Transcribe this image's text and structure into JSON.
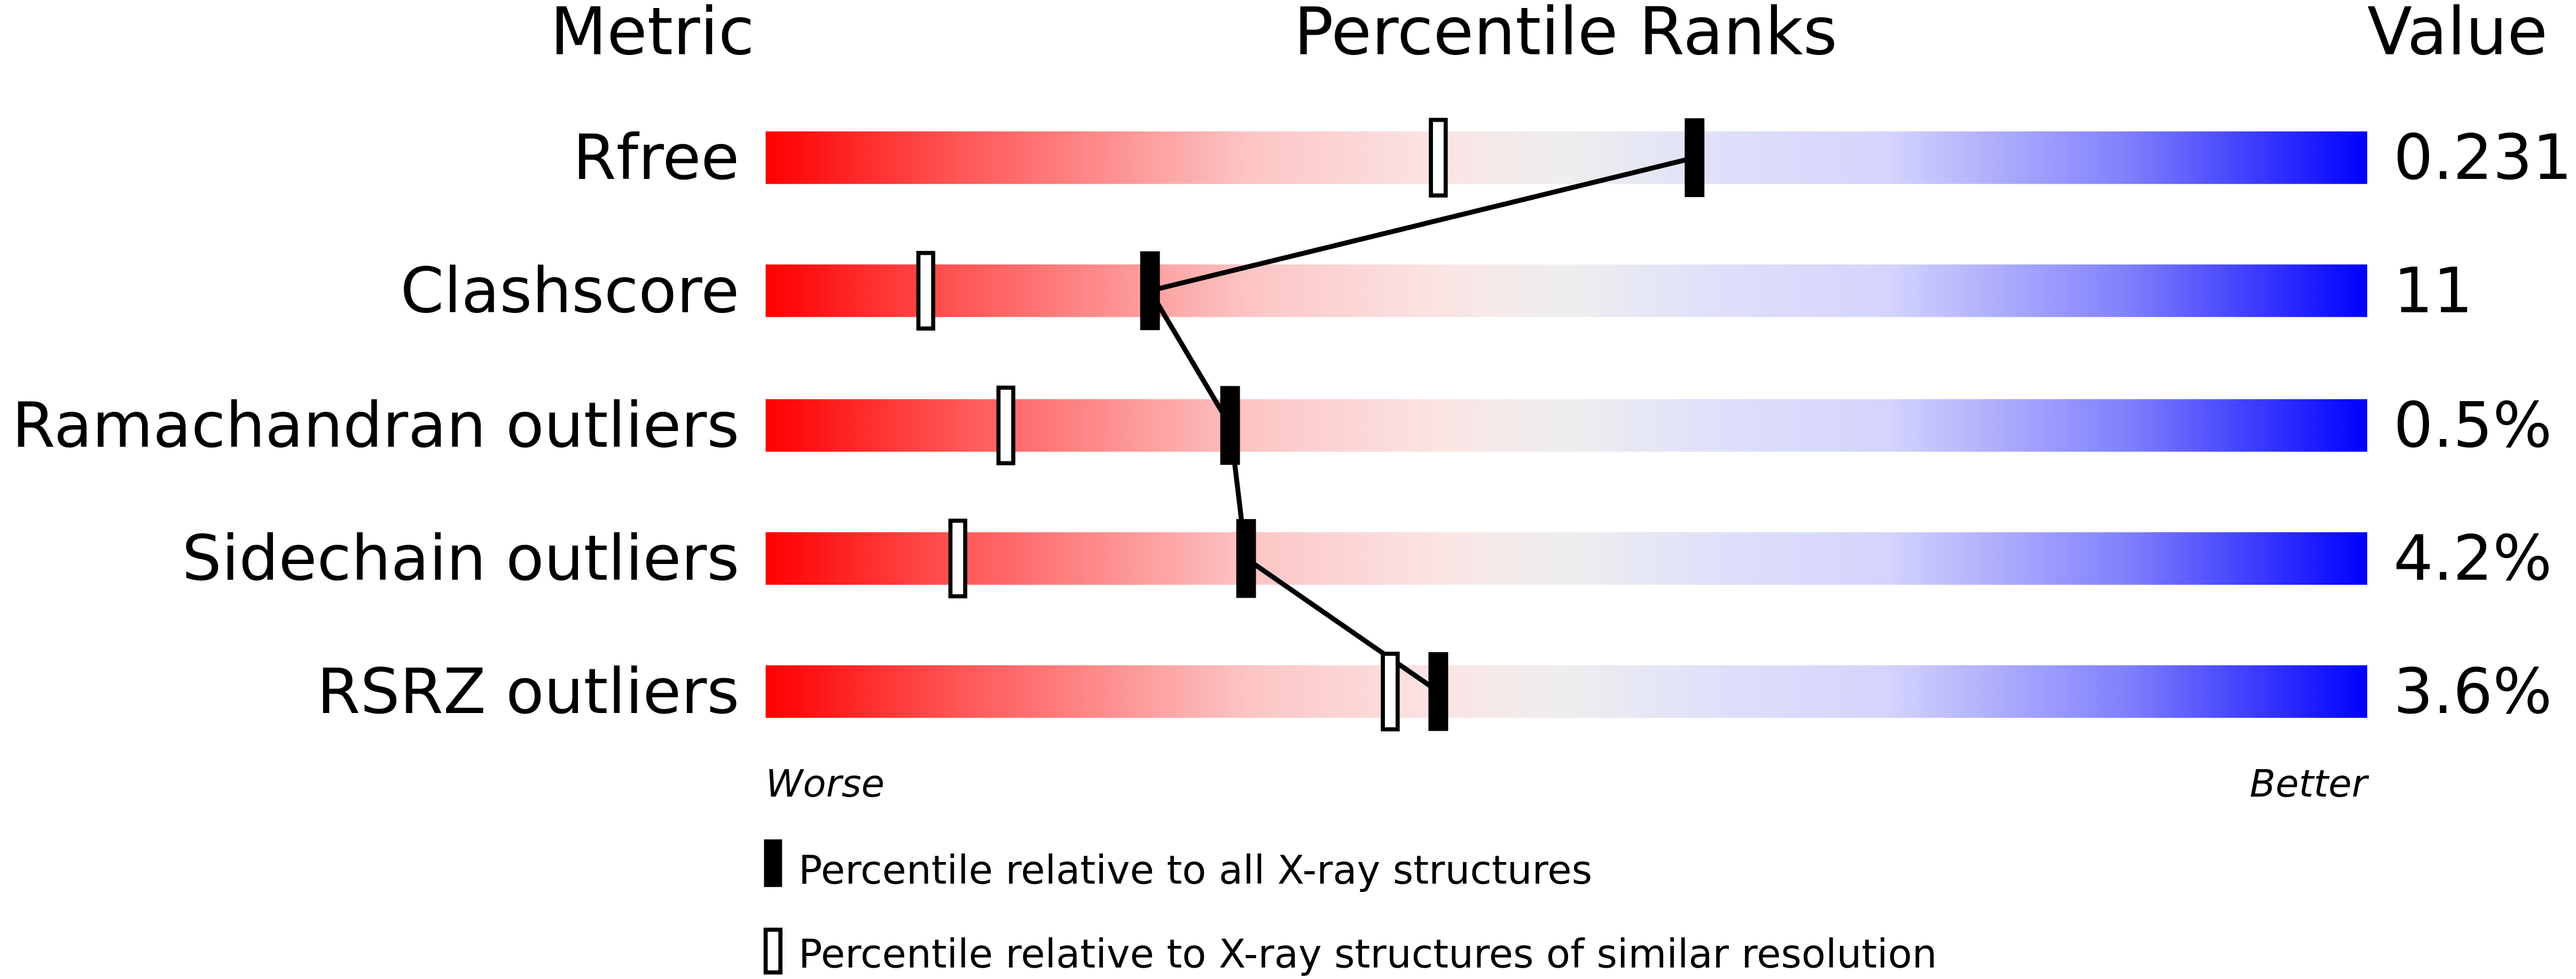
{
  "chart_data": {
    "type": "percentile-ranks",
    "headers": {
      "metric": "Metric",
      "ranks": "Percentile Ranks",
      "value": "Value"
    },
    "axis": {
      "min_label": "Worse",
      "max_label": "Better",
      "range": [
        0,
        100
      ]
    },
    "colors": {
      "worse": "#ff0000",
      "middle": "#eeeeee",
      "better": "#0000ff",
      "marker": "#000000"
    },
    "rows": [
      {
        "metric": "Rfree",
        "value": "0.231",
        "percentile_all": 58,
        "percentile_similar": 42
      },
      {
        "metric": "Clashscore",
        "value": "11",
        "percentile_all": 24,
        "percentile_similar": 10
      },
      {
        "metric": "Ramachandran outliers",
        "value": "0.5%",
        "percentile_all": 29,
        "percentile_similar": 15
      },
      {
        "metric": "Sidechain outliers",
        "value": "4.2%",
        "percentile_all": 30,
        "percentile_similar": 12
      },
      {
        "metric": "RSRZ outliers",
        "value": "3.6%",
        "percentile_all": 42,
        "percentile_similar": 39
      }
    ],
    "legend": [
      {
        "marker": "filled",
        "label": "Percentile relative to all X-ray structures"
      },
      {
        "marker": "open",
        "label": "Percentile relative to X-ray structures of similar resolution"
      }
    ]
  }
}
